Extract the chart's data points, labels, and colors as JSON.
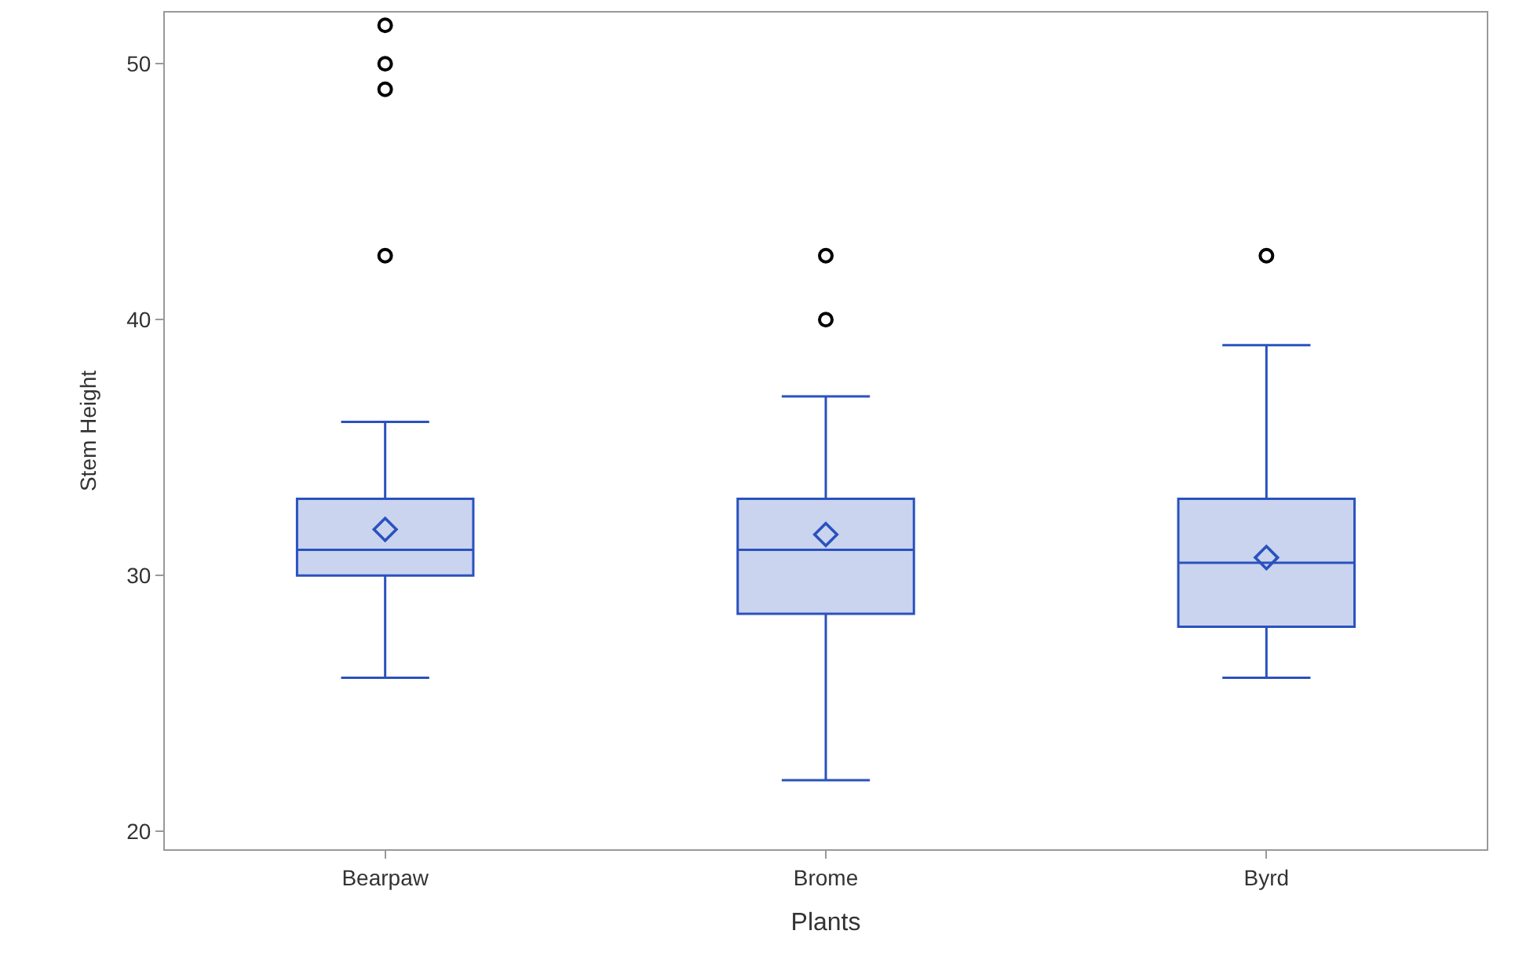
{
  "chart_data": {
    "type": "box",
    "xlabel": "Plants",
    "ylabel": "Stem Height",
    "categories": [
      "Bearpaw",
      "Brome",
      "Byrd"
    ],
    "boxes": [
      {
        "low": 26,
        "q1": 30,
        "median": 31,
        "q3": 33,
        "high": 36,
        "mean": 31.8,
        "outliers": [
          42.5,
          49,
          50,
          51.5
        ]
      },
      {
        "low": 22,
        "q1": 28.5,
        "median": 31,
        "q3": 33,
        "high": 37,
        "mean": 31.6,
        "outliers": [
          40,
          42.5
        ]
      },
      {
        "low": 26,
        "q1": 28,
        "median": 30.5,
        "q3": 33,
        "high": 39,
        "mean": 30.7,
        "outliers": [
          42.5
        ]
      }
    ],
    "color": "#2a52be",
    "ylim": [
      19.3,
      52
    ],
    "yticks": [
      20,
      30,
      40,
      50
    ],
    "legend": false
  }
}
